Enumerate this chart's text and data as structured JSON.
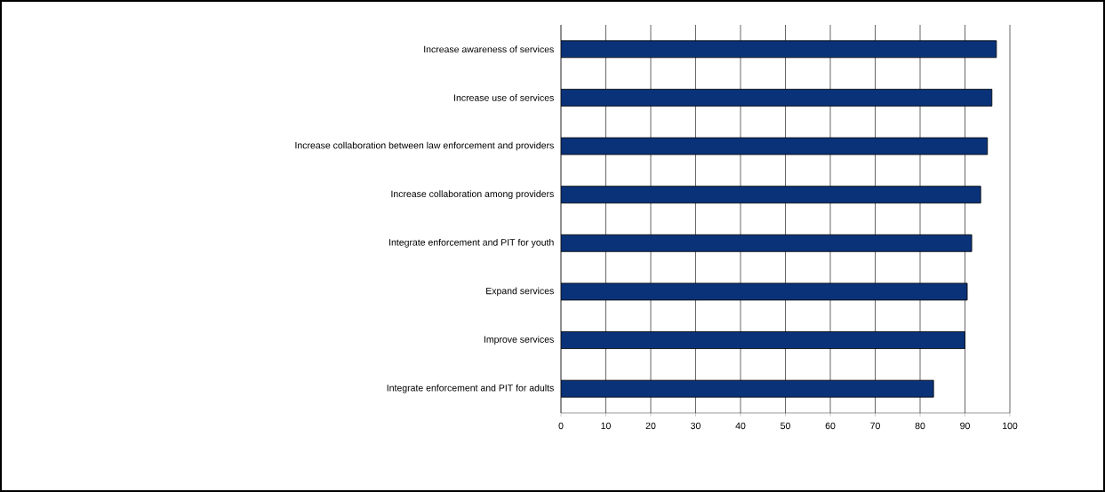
{
  "chart_data": {
    "type": "bar",
    "orientation": "horizontal",
    "categories": [
      "Increase awareness of services",
      "Increase use of services",
      "Increase collaboration between law enforcement and providers",
      "Increase collaboration among providers",
      "Integrate enforcement and PIT for youth",
      "Expand services",
      "Improve services",
      "Integrate enforcement and PIT for adults"
    ],
    "values": [
      97,
      96,
      95,
      93.5,
      91.5,
      90.5,
      90,
      83
    ],
    "color": "#0a3278",
    "xlim": [
      0,
      100
    ],
    "xticks": [
      0,
      10,
      20,
      30,
      40,
      50,
      60,
      70,
      80,
      90,
      100
    ],
    "grid": "x"
  }
}
